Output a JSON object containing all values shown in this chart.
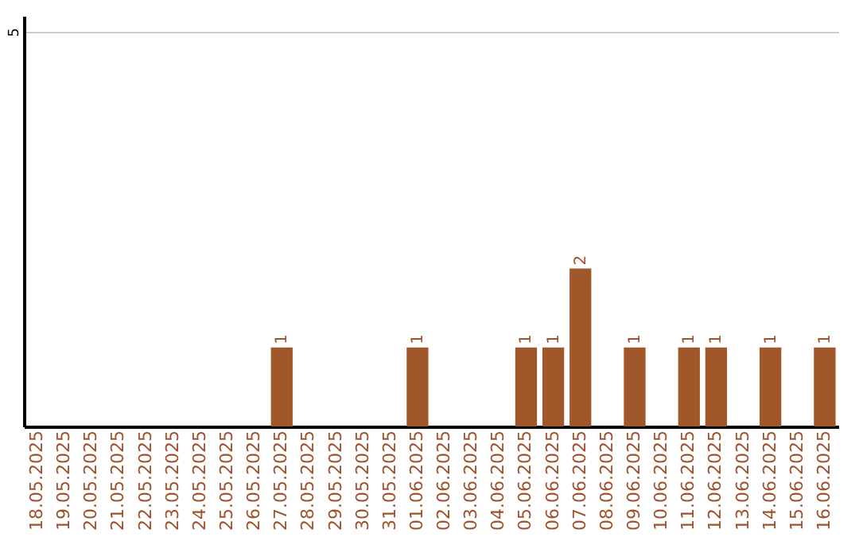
{
  "chart_data": {
    "type": "bar",
    "categories": [
      "18.05.2025",
      "19.05.2025",
      "20.05.2025",
      "21.05.2025",
      "22.05.2025",
      "23.05.2025",
      "24.05.2025",
      "25.05.2025",
      "26.05.2025",
      "27.05.2025",
      "28.05.2025",
      "29.05.2025",
      "30.05.2025",
      "31.05.2025",
      "01.06.2025",
      "02.06.2025",
      "03.06.2025",
      "04.06.2025",
      "05.06.2025",
      "06.06.2025",
      "07.06.2025",
      "08.06.2025",
      "09.06.2025",
      "10.06.2025",
      "11.06.2025",
      "12.06.2025",
      "13.06.2025",
      "14.06.2025",
      "15.06.2025",
      "16.06.2025"
    ],
    "values": [
      null,
      null,
      null,
      null,
      null,
      null,
      null,
      null,
      null,
      1,
      null,
      null,
      null,
      null,
      1,
      null,
      null,
      null,
      1,
      1,
      2,
      null,
      1,
      null,
      1,
      1,
      null,
      1,
      null,
      1
    ],
    "color": "#a0582a",
    "ylim": [
      0,
      5.2
    ],
    "yticks": [
      5
    ],
    "grid": "y",
    "data_labels": true
  }
}
